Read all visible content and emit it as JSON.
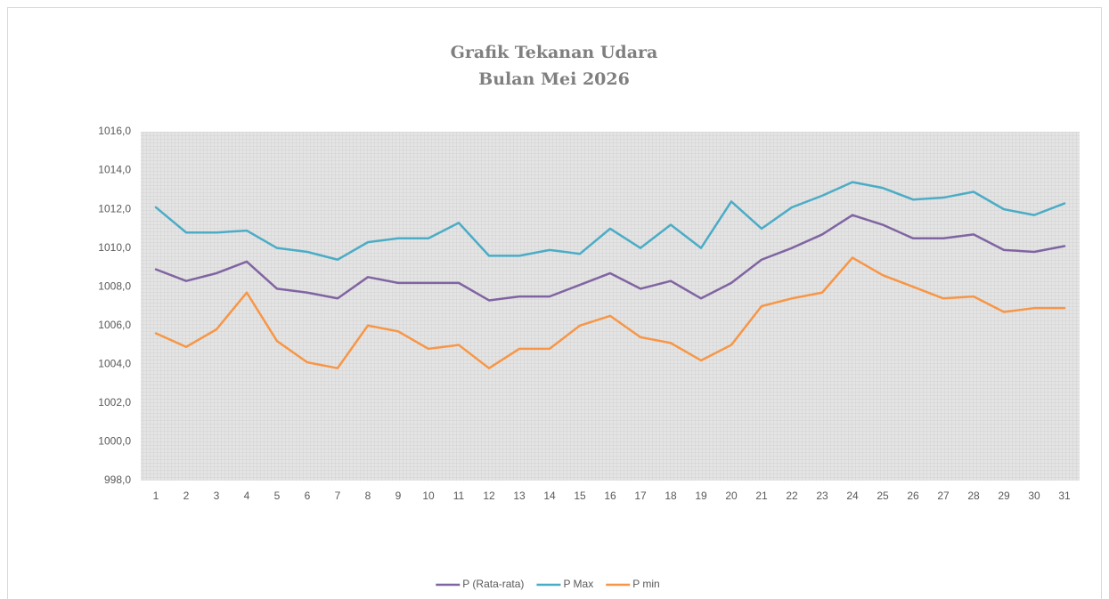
{
  "chart_data": {
    "type": "line",
    "title": "Grafik Tekanan Udara",
    "subtitle": "Bulan Mei 2026",
    "categories": [
      "1",
      "2",
      "3",
      "4",
      "5",
      "6",
      "7",
      "8",
      "9",
      "10",
      "11",
      "12",
      "13",
      "14",
      "15",
      "16",
      "17",
      "18",
      "19",
      "20",
      "21",
      "22",
      "23",
      "24",
      "25",
      "26",
      "27",
      "28",
      "29",
      "30",
      "31"
    ],
    "series": [
      {
        "name": "P (Rata-rata)",
        "color": "#8064a2",
        "values": [
          1008.9,
          1008.3,
          1008.7,
          1009.3,
          1007.9,
          1007.7,
          1007.4,
          1008.5,
          1008.2,
          1008.2,
          1008.2,
          1007.3,
          1007.5,
          1007.5,
          1008.1,
          1008.7,
          1007.9,
          1008.3,
          1007.4,
          1008.2,
          1009.4,
          1010.0,
          1010.7,
          1011.7,
          1011.2,
          1010.5,
          1010.5,
          1010.7,
          1009.9,
          1009.8,
          1010.1
        ]
      },
      {
        "name": "P Max",
        "color": "#4bacc6",
        "values": [
          1012.1,
          1010.8,
          1010.8,
          1010.9,
          1010.0,
          1009.8,
          1009.4,
          1010.3,
          1010.5,
          1010.5,
          1011.3,
          1009.6,
          1009.6,
          1009.9,
          1009.7,
          1011.0,
          1010.0,
          1011.2,
          1010.0,
          1012.4,
          1011.0,
          1012.1,
          1012.7,
          1013.4,
          1013.1,
          1012.5,
          1012.6,
          1012.9,
          1012.0,
          1011.7,
          1012.3
        ]
      },
      {
        "name": "P min",
        "color": "#f79646",
        "values": [
          1005.6,
          1004.9,
          1005.8,
          1007.7,
          1005.2,
          1004.1,
          1003.8,
          1006.0,
          1005.7,
          1004.8,
          1005.0,
          1003.8,
          1004.8,
          1004.8,
          1006.0,
          1006.5,
          1005.4,
          1005.1,
          1004.2,
          1005.0,
          1007.0,
          1007.4,
          1007.7,
          1009.5,
          1008.6,
          1008.0,
          1007.4,
          1007.5,
          1006.7,
          1006.9,
          1006.9
        ]
      }
    ],
    "ylim": [
      998,
      1016
    ],
    "yticks": [
      {
        "value": 998,
        "label": "998,0"
      },
      {
        "value": 1000,
        "label": "1000,0"
      },
      {
        "value": 1002,
        "label": "1002,0"
      },
      {
        "value": 1004,
        "label": "1004,0"
      },
      {
        "value": 1006,
        "label": "1006,0"
      },
      {
        "value": 1008,
        "label": "1008,0"
      },
      {
        "value": 1010,
        "label": "1010,0"
      },
      {
        "value": 1012,
        "label": "1012,0"
      },
      {
        "value": 1014,
        "label": "1014,0"
      },
      {
        "value": 1016,
        "label": "1016,0"
      }
    ],
    "legend": "bottom"
  }
}
